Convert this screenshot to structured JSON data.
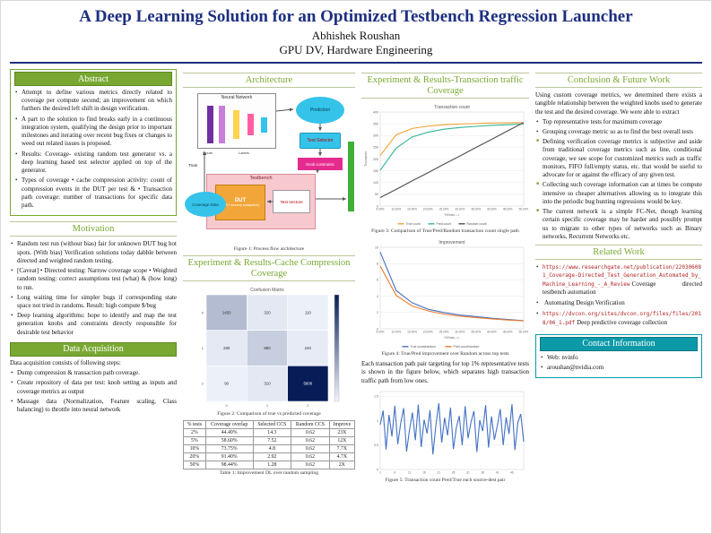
{
  "poster": {
    "title": "A Deep Learning Solution for an Optimized Testbench Regression Launcher",
    "author": "Abhishek Roushan",
    "affiliation": "GPU DV, Hardware Engineering"
  },
  "abstract": {
    "heading": "Abstract",
    "items": [
      "Attempt to define various metrics directly related to coverage per compute second; an improvement on which furthers the desired left shift in design verification.",
      "A part to the solution to find breaks early in a continuous integration system, qualifying the design prior to important milestones and iterating over recent bug fixes or changes to weed out related issues is proposed.",
      "Results: Coverage- existing random test generator vs. a deep learning based test selector applied on top of the generator.",
      "Types of coverage • cache compression activity: count of compression events in the DUT per test & • Transaction path coverage: number of transactions for specific data path."
    ]
  },
  "motivation": {
    "heading": "Motivation",
    "items": [
      "Random test run (without bias) fair for unknown DUT bug hot spots. (With bias) Verification solutions today dabble between directed and weighted random testing.",
      "[Caveat] • Directed testing: Narrow coverage scope • Weighted random testing: correct assumptions test (what) & (how long) to run.",
      "Long waiting time for simpler bugs if corresponding state space not tried in randoms. Result: high compute $/bug",
      "Deep learning algorithms: hope to identify and map the test generation knobs and constraints directly responsible for desirable test behavior"
    ]
  },
  "data_acquisition": {
    "heading": "Data Acquisition",
    "intro": "Data acquisition consists of following steps:",
    "items": [
      "Dump compression & transaction path coverage.",
      "Create repository of data per test: knob setting as inputs and coverage metrics as output",
      "Massage data (Normalization, Feature scaling, Class balancing) to throttle into neural network"
    ]
  },
  "architecture": {
    "heading": "Architecture",
    "caption": "Figure 1: Process flow architecture",
    "diagram": {
      "neural_network": "Neural Network",
      "inputs": "Inputs",
      "labels": "Labels",
      "prediction": "Prediction",
      "test_selector": "Test Selector",
      "knob_constraints": "Knob constraints",
      "train": "Train",
      "testbench": "Testbench",
      "dut": "DUT",
      "dut_sub": "(GPU memory subsystem)",
      "test_vectors": "Test Vectors",
      "coverage_data": "Coverage Data"
    }
  },
  "cache_section": {
    "heading": "Experiment & Results-Cache Compression Coverage",
    "figure_caption": "Figure 2: Comparison of true vs predicted coverage",
    "table_caption": "Table 1: Improvement DL over random sampling",
    "table": {
      "headers": [
        "% tests",
        "Coverage overlap",
        "Selected CCS",
        "Random CCS",
        "Improve"
      ],
      "rows": [
        [
          "2%",
          "44.49%",
          "14.3",
          "0.62",
          "23X"
        ],
        [
          "5%",
          "58.60%",
          "7.52",
          "0.62",
          "12X"
        ],
        [
          "10%",
          "73.75%",
          "4.8",
          "0.62",
          "7.7X"
        ],
        [
          "20%",
          "91.40%",
          "2.92",
          "0.62",
          "4.7X"
        ],
        [
          "50%",
          "98.44%",
          "1.28",
          "0.62",
          "2X"
        ]
      ]
    }
  },
  "transaction_section": {
    "heading": "Experiment & Results-Transaction traffic Coverage",
    "figure3_caption": "Figure 3: Comparison of True/Pred/Random transaction count single path",
    "figure4_caption": "Figure 4: True/Pred improvement over Random across top tests",
    "paragraph": "Each transaction path pair targeting for top 1% representative tests is shown in the figure below, which separates high transaction traffic path from low ones.",
    "figure5_caption": "Figure 5: Transaction count Pred/True each source-dest pair"
  },
  "conclusion": {
    "heading": "Conclusion & Future Work",
    "intro": "Using custom coverage metrics, we determined there exists a tangible relationship between the weighted knobs used to generate the test and the desired coverage. We were able to extract",
    "items": [
      "Top representative tests for maximum coverage",
      "Grouping coverage metric so as to find the best overall tests",
      "Defining verification coverage metrics is subjective and aside from traditional coverage metrics such as line, conditional coverage, we see scope for customized metrics such as traffic monitors, FIFO full/empty status, etc. that would be useful to advocate for or against the efficacy of any given test.",
      "Collecting such coverage information can at times be compute intensive so cheaper alternatives allowing us to integrate this into the periodic bug hunting regressions would be key.",
      "The current network is a simple FC-Net, though learning certain specific coverage may be harder and possibly prompt us to migrate to other types of networks such as Binary networks, Recurrent Networks etc."
    ]
  },
  "related": {
    "heading": "Related Work",
    "items": [
      {
        "url": "https://www.researchgate.net/publication/220306081_Coverage-Directed_Test_Generation_Automated_by_Machine_Learning_-_A_Review",
        "text": "Coverage directed testbench automation"
      },
      {
        "url": "",
        "text": "Automating Design Verification"
      },
      {
        "url": "https://dvcon.org/sites/dvcon.org/files/files/2018/06_1.pdf",
        "text": "Deep predictive coverage collection"
      }
    ]
  },
  "contact": {
    "heading": "Contact Information",
    "items": [
      "Web: nvinfo",
      "aroushan@nvidia.com"
    ]
  },
  "chart_data": [
    {
      "id": "fig2",
      "type": "heatmap",
      "title": "Confusion Matrix",
      "x_categories": [
        "0",
        "1",
        "2"
      ],
      "y_categories": [
        "0",
        "1",
        "2"
      ],
      "values": [
        [
          1450,
          320,
          110
        ],
        [
          280,
          980,
          240
        ],
        [
          90,
          310,
          5600
        ]
      ]
    },
    {
      "id": "fig3",
      "type": "line",
      "title": "Transaction count",
      "ylabel": "Thousands",
      "xlabel": "%Tests -->",
      "x_categories": [
        "5.00%",
        "10.00%",
        "15.00%",
        "20.00%",
        "25.00%",
        "30.00%",
        "35.00%",
        "40.00%",
        "45.00%",
        "50.00%"
      ],
      "ylim": [
        0,
        400
      ],
      "yticks": [
        0,
        50,
        100,
        150,
        200,
        250,
        300,
        350,
        400
      ],
      "series": [
        {
          "name": "True count",
          "color": "#f0a030",
          "values": [
            215,
            303,
            330,
            340,
            346,
            349,
            351,
            353,
            354,
            355
          ]
        },
        {
          "name": "Pred count",
          "color": "#33b39a",
          "values": [
            152,
            246,
            294,
            314,
            327,
            334,
            339,
            343,
            346,
            349
          ]
        },
        {
          "name": "Random count",
          "color": "#4d4d4d",
          "values": [
            36,
            71,
            107,
            142,
            178,
            213,
            249,
            284,
            320,
            355
          ]
        }
      ],
      "legend_position": "bottom"
    },
    {
      "id": "fig4",
      "type": "line",
      "title": "Improvement",
      "xlabel": "%Tests -->",
      "x_categories": [
        "5.00%",
        "10.00%",
        "15.00%",
        "20.00%",
        "25.00%",
        "30.00%",
        "35.00%",
        "40.00%",
        "45.00%",
        "50.00%"
      ],
      "ylim": [
        0,
        10
      ],
      "yticks": [
        0,
        2,
        4,
        6,
        8,
        10
      ],
      "series": [
        {
          "name": "True count/random",
          "color": "#4472c4",
          "values": [
            9.4,
            4.7,
            3.2,
            2.4,
            2.0,
            1.7,
            1.5,
            1.3,
            1.15,
            1.0
          ]
        },
        {
          "name": "Pred count/random",
          "color": "#ed7d31",
          "values": [
            7.7,
            4.1,
            2.8,
            2.2,
            1.8,
            1.55,
            1.38,
            1.22,
            1.08,
            0.98
          ]
        }
      ],
      "legend_position": "bottom"
    },
    {
      "id": "fig5",
      "type": "line",
      "title": "",
      "ylim": [
        0,
        1.6
      ],
      "yticks": [
        0,
        0.5,
        1,
        1.5
      ],
      "xtick_every": 5,
      "series": [
        {
          "name": "Pred/True",
          "color": "#4472c4",
          "values": [
            0.92,
            1.21,
            0.41,
            1.12,
            0.68,
            1.31,
            0.52,
            0.95,
            1.26,
            0.37,
            0.81,
            1.17,
            0.6,
            1.33,
            0.46,
            1.02,
            0.74,
            1.22,
            0.31,
            0.9,
            1.36,
            0.55,
            1.06,
            0.7,
            1.27,
            0.42,
            0.86,
            1.1,
            0.5,
            1.3,
            0.64,
            0.97,
            1.2,
            0.36,
            1.01,
            0.79,
            1.32,
            0.45,
            1.09,
            0.61,
            0.9,
            1.24,
            0.5,
            1.07,
            0.73,
            1.34,
            0.4,
            0.96,
            1.14,
            0.57
          ]
        }
      ]
    }
  ]
}
